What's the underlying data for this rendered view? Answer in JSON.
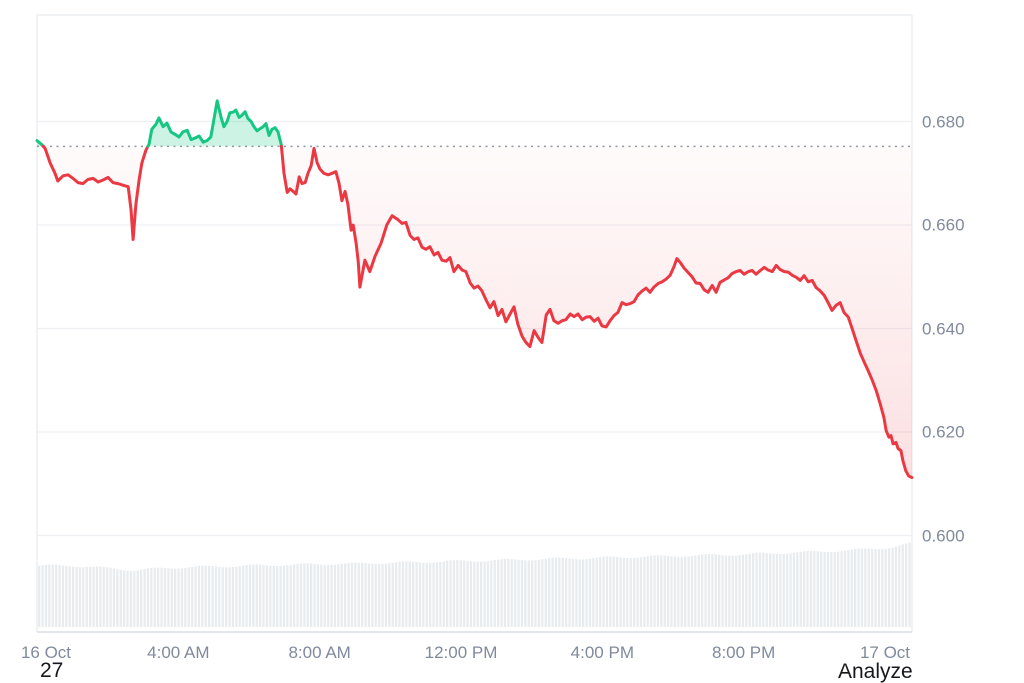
{
  "page": {
    "background": "#ffffff",
    "bottom_left_text": "27",
    "bottom_right_text": "Analyze"
  },
  "chart_data": {
    "type": "area",
    "title": "",
    "xlabel": "",
    "ylabel": "",
    "grid": "horizontal-only",
    "legend": "none",
    "baseline_value": 0.6752,
    "ylim": [
      0.581,
      0.701
    ],
    "x_range_hours": [
      0,
      24.76
    ],
    "y_axis": {
      "ticks": [
        {
          "value": 0.68,
          "label": "0.680"
        },
        {
          "value": 0.66,
          "label": "0.660"
        },
        {
          "value": 0.64,
          "label": "0.640"
        },
        {
          "value": 0.62,
          "label": "0.620"
        },
        {
          "value": 0.6,
          "label": "0.600"
        }
      ]
    },
    "x_axis": {
      "ticks": [
        {
          "hour": 0,
          "label": "16 Oct"
        },
        {
          "hour": 4,
          "label": "4:00 AM"
        },
        {
          "hour": 8,
          "label": "8:00 AM"
        },
        {
          "hour": 12,
          "label": "12:00 PM"
        },
        {
          "hour": 16,
          "label": "4:00 PM"
        },
        {
          "hour": 20,
          "label": "8:00 PM"
        },
        {
          "hour": 24,
          "label": "17 Oct"
        }
      ]
    },
    "colors": {
      "up": "#16c784",
      "down": "#ea3943",
      "up_fill": "rgba(22,199,132,0.22)",
      "down_fill_top_opacity": 0.02,
      "down_fill_bottom_opacity": 0.22,
      "grid": "#eef0f3",
      "border": "#e7eaee",
      "axis_line": "#d8dde3",
      "axis_label": "#808a9d",
      "baseline": "#9097a1",
      "volume": "#e8ecef",
      "page_text": "#17181b"
    },
    "series": [
      {
        "name": "price",
        "points": [
          [
            0,
            0.6763
          ],
          [
            0.11,
            0.6757
          ],
          [
            0.23,
            0.6748
          ],
          [
            0.37,
            0.672
          ],
          [
            0.51,
            0.67
          ],
          [
            0.59,
            0.6685
          ],
          [
            0.74,
            0.6695
          ],
          [
            0.88,
            0.6697
          ],
          [
            1.02,
            0.669
          ],
          [
            1.16,
            0.6682
          ],
          [
            1.3,
            0.668
          ],
          [
            1.44,
            0.6688
          ],
          [
            1.59,
            0.669
          ],
          [
            1.73,
            0.6683
          ],
          [
            1.87,
            0.6687
          ],
          [
            2.01,
            0.6692
          ],
          [
            2.15,
            0.6682
          ],
          [
            2.29,
            0.668
          ],
          [
            2.43,
            0.6677
          ],
          [
            2.58,
            0.6674
          ],
          [
            2.66,
            0.663
          ],
          [
            2.72,
            0.6572
          ],
          [
            2.8,
            0.664
          ],
          [
            2.89,
            0.6687
          ],
          [
            2.97,
            0.672
          ],
          [
            3.08,
            0.6744
          ],
          [
            3.17,
            0.6756
          ],
          [
            3.25,
            0.6785
          ],
          [
            3.37,
            0.6795
          ],
          [
            3.45,
            0.6807
          ],
          [
            3.57,
            0.679
          ],
          [
            3.68,
            0.6797
          ],
          [
            3.79,
            0.678
          ],
          [
            3.91,
            0.6775
          ],
          [
            4.02,
            0.677
          ],
          [
            4.13,
            0.678
          ],
          [
            4.25,
            0.6783
          ],
          [
            4.36,
            0.6765
          ],
          [
            4.47,
            0.6768
          ],
          [
            4.59,
            0.6772
          ],
          [
            4.7,
            0.676
          ],
          [
            4.81,
            0.6763
          ],
          [
            4.92,
            0.677
          ],
          [
            5.01,
            0.6805
          ],
          [
            5.1,
            0.684
          ],
          [
            5.15,
            0.6825
          ],
          [
            5.21,
            0.6808
          ],
          [
            5.29,
            0.679
          ],
          [
            5.38,
            0.68
          ],
          [
            5.46,
            0.6817
          ],
          [
            5.55,
            0.6818
          ],
          [
            5.63,
            0.6822
          ],
          [
            5.72,
            0.6808
          ],
          [
            5.8,
            0.6812
          ],
          [
            5.89,
            0.6819
          ],
          [
            5.97,
            0.6806
          ],
          [
            6.06,
            0.68
          ],
          [
            6.14,
            0.679
          ],
          [
            6.23,
            0.6782
          ],
          [
            6.31,
            0.6786
          ],
          [
            6.4,
            0.679
          ],
          [
            6.48,
            0.6796
          ],
          [
            6.57,
            0.6773
          ],
          [
            6.65,
            0.6785
          ],
          [
            6.74,
            0.6788
          ],
          [
            6.82,
            0.678
          ],
          [
            6.91,
            0.6756
          ],
          [
            6.99,
            0.67
          ],
          [
            7.08,
            0.6663
          ],
          [
            7.16,
            0.667
          ],
          [
            7.25,
            0.6665
          ],
          [
            7.33,
            0.666
          ],
          [
            7.42,
            0.6693
          ],
          [
            7.5,
            0.668
          ],
          [
            7.59,
            0.6682
          ],
          [
            7.67,
            0.67
          ],
          [
            7.76,
            0.6715
          ],
          [
            7.84,
            0.6748
          ],
          [
            7.93,
            0.672
          ],
          [
            8.01,
            0.6708
          ],
          [
            8.12,
            0.67
          ],
          [
            8.24,
            0.6697
          ],
          [
            8.35,
            0.67
          ],
          [
            8.46,
            0.6703
          ],
          [
            8.55,
            0.668
          ],
          [
            8.63,
            0.6647
          ],
          [
            8.72,
            0.6665
          ],
          [
            8.8,
            0.664
          ],
          [
            8.89,
            0.659
          ],
          [
            8.95,
            0.66
          ],
          [
            9.03,
            0.6565
          ],
          [
            9.09,
            0.653
          ],
          [
            9.14,
            0.648
          ],
          [
            9.28,
            0.6532
          ],
          [
            9.42,
            0.651
          ],
          [
            9.57,
            0.654
          ],
          [
            9.74,
            0.6565
          ],
          [
            9.9,
            0.66
          ],
          [
            10.05,
            0.6618
          ],
          [
            10.22,
            0.661
          ],
          [
            10.33,
            0.6603
          ],
          [
            10.44,
            0.6605
          ],
          [
            10.56,
            0.658
          ],
          [
            10.67,
            0.6572
          ],
          [
            10.78,
            0.6575
          ],
          [
            10.9,
            0.6557
          ],
          [
            11.01,
            0.6553
          ],
          [
            11.12,
            0.6558
          ],
          [
            11.24,
            0.6542
          ],
          [
            11.35,
            0.6547
          ],
          [
            11.46,
            0.6532
          ],
          [
            11.58,
            0.653
          ],
          [
            11.69,
            0.6537
          ],
          [
            11.8,
            0.651
          ],
          [
            11.92,
            0.6522
          ],
          [
            12.03,
            0.6513
          ],
          [
            12.14,
            0.651
          ],
          [
            12.26,
            0.6488
          ],
          [
            12.37,
            0.6478
          ],
          [
            12.48,
            0.6482
          ],
          [
            12.59,
            0.6473
          ],
          [
            12.71,
            0.6455
          ],
          [
            12.82,
            0.644
          ],
          [
            12.93,
            0.6452
          ],
          [
            13.05,
            0.6425
          ],
          [
            13.16,
            0.6437
          ],
          [
            13.27,
            0.6413
          ],
          [
            13.39,
            0.6428
          ],
          [
            13.5,
            0.6442
          ],
          [
            13.61,
            0.6408
          ],
          [
            13.73,
            0.6385
          ],
          [
            13.84,
            0.6373
          ],
          [
            13.95,
            0.6365
          ],
          [
            14.07,
            0.6396
          ],
          [
            14.18,
            0.6383
          ],
          [
            14.29,
            0.6373
          ],
          [
            14.41,
            0.6426
          ],
          [
            14.52,
            0.6437
          ],
          [
            14.63,
            0.6415
          ],
          [
            14.75,
            0.641
          ],
          [
            14.86,
            0.6415
          ],
          [
            14.97,
            0.6417
          ],
          [
            15.09,
            0.6428
          ],
          [
            15.2,
            0.6423
          ],
          [
            15.31,
            0.6428
          ],
          [
            15.43,
            0.6417
          ],
          [
            15.54,
            0.6422
          ],
          [
            15.65,
            0.6423
          ],
          [
            15.77,
            0.6414
          ],
          [
            15.88,
            0.642
          ],
          [
            15.99,
            0.6405
          ],
          [
            16.11,
            0.6403
          ],
          [
            16.22,
            0.6415
          ],
          [
            16.33,
            0.6425
          ],
          [
            16.44,
            0.6431
          ],
          [
            16.56,
            0.645
          ],
          [
            16.67,
            0.6446
          ],
          [
            16.78,
            0.6448
          ],
          [
            16.9,
            0.6452
          ],
          [
            17.01,
            0.6465
          ],
          [
            17.12,
            0.6472
          ],
          [
            17.24,
            0.6478
          ],
          [
            17.35,
            0.647
          ],
          [
            17.46,
            0.648
          ],
          [
            17.58,
            0.6487
          ],
          [
            17.69,
            0.649
          ],
          [
            17.8,
            0.6495
          ],
          [
            17.92,
            0.6503
          ],
          [
            18.03,
            0.652
          ],
          [
            18.11,
            0.6535
          ],
          [
            18.2,
            0.6528
          ],
          [
            18.31,
            0.6517
          ],
          [
            18.43,
            0.6508
          ],
          [
            18.54,
            0.65
          ],
          [
            18.65,
            0.6488
          ],
          [
            18.77,
            0.6487
          ],
          [
            18.88,
            0.6475
          ],
          [
            18.99,
            0.647
          ],
          [
            19.11,
            0.6483
          ],
          [
            19.22,
            0.647
          ],
          [
            19.33,
            0.6489
          ],
          [
            19.45,
            0.6494
          ],
          [
            19.56,
            0.6498
          ],
          [
            19.67,
            0.6506
          ],
          [
            19.79,
            0.651
          ],
          [
            19.9,
            0.6512
          ],
          [
            20.01,
            0.6505
          ],
          [
            20.13,
            0.651
          ],
          [
            20.24,
            0.6512
          ],
          [
            20.35,
            0.6505
          ],
          [
            20.47,
            0.6512
          ],
          [
            20.58,
            0.6518
          ],
          [
            20.69,
            0.6513
          ],
          [
            20.81,
            0.651
          ],
          [
            20.92,
            0.6522
          ],
          [
            21.03,
            0.6514
          ],
          [
            21.15,
            0.651
          ],
          [
            21.26,
            0.6509
          ],
          [
            21.37,
            0.6503
          ],
          [
            21.49,
            0.6499
          ],
          [
            21.6,
            0.6493
          ],
          [
            21.71,
            0.6502
          ],
          [
            21.83,
            0.649
          ],
          [
            21.94,
            0.6493
          ],
          [
            22.05,
            0.6479
          ],
          [
            22.16,
            0.6473
          ],
          [
            22.28,
            0.6464
          ],
          [
            22.39,
            0.645
          ],
          [
            22.5,
            0.6435
          ],
          [
            22.62,
            0.6445
          ],
          [
            22.73,
            0.645
          ],
          [
            22.84,
            0.6431
          ],
          [
            22.96,
            0.6422
          ],
          [
            23.07,
            0.64
          ],
          [
            23.18,
            0.6377
          ],
          [
            23.3,
            0.6352
          ],
          [
            23.41,
            0.6335
          ],
          [
            23.52,
            0.6319
          ],
          [
            23.64,
            0.63
          ],
          [
            23.75,
            0.628
          ],
          [
            23.86,
            0.6255
          ],
          [
            23.97,
            0.6228
          ],
          [
            24.03,
            0.6203
          ],
          [
            24.11,
            0.619
          ],
          [
            24.17,
            0.6193
          ],
          [
            24.23,
            0.6177
          ],
          [
            24.31,
            0.618
          ],
          [
            24.37,
            0.6168
          ],
          [
            24.45,
            0.6164
          ],
          [
            24.51,
            0.6144
          ],
          [
            24.59,
            0.6125
          ],
          [
            24.67,
            0.6115
          ],
          [
            24.76,
            0.6112
          ]
        ]
      }
    ],
    "volume_profile": [
      [
        0,
        0.73
      ],
      [
        1,
        0.73
      ],
      [
        2,
        0.7
      ],
      [
        2.7,
        0.675
      ],
      [
        3.5,
        0.7
      ],
      [
        4.5,
        0.715
      ],
      [
        6,
        0.73
      ],
      [
        7.5,
        0.745
      ],
      [
        9,
        0.755
      ],
      [
        10.5,
        0.77
      ],
      [
        12,
        0.785
      ],
      [
        13.5,
        0.8
      ],
      [
        15,
        0.815
      ],
      [
        16.5,
        0.83
      ],
      [
        18,
        0.845
      ],
      [
        19,
        0.855
      ],
      [
        20,
        0.865
      ],
      [
        21,
        0.88
      ],
      [
        22,
        0.895
      ],
      [
        23,
        0.915
      ],
      [
        23.6,
        0.93
      ],
      [
        24.2,
        0.95
      ],
      [
        24.76,
        1.0
      ]
    ]
  }
}
